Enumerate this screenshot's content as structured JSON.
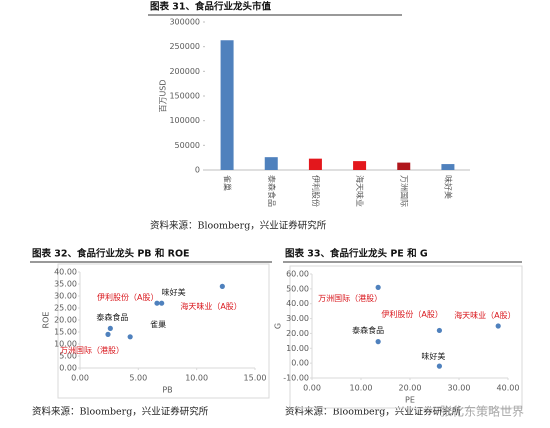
{
  "chart_data": [
    {
      "type": "bar",
      "title": "图表 31、食品行业龙头市值",
      "source": "资料来源：Bloomberg，兴业证券研究所",
      "y_label": "百万USD",
      "categories": [
        "雀巢",
        "泰森食品",
        "伊利股份",
        "海天味业",
        "万洲国际",
        "味好美"
      ],
      "values": [
        263000,
        26000,
        23000,
        18000,
        15000,
        12000
      ],
      "colors": [
        "#4f81bd",
        "#4f81bd",
        "#e3171c",
        "#e3171c",
        "#b0161c",
        "#4f81bd"
      ],
      "ylim": [
        0,
        300000
      ],
      "yticks": [
        0,
        50000,
        100000,
        150000,
        200000,
        250000,
        300000
      ]
    },
    {
      "type": "scatter",
      "title": "图表 32、食品行业龙头 PB 和 ROE",
      "source": "资料来源：Bloomberg，兴业证券研究所",
      "x_label": "PB",
      "y_label": "ROE",
      "color": "#4f81bd",
      "labels": [
        "雀巢",
        "泰森食品",
        "万洲国际（港股）",
        "伊利股份（A股）",
        "味好美",
        "海天味业（A股）"
      ],
      "label_colors": [
        "#222222",
        "#222222",
        "#d9151b",
        "#d9151b",
        "#222222",
        "#d9151b"
      ],
      "x": [
        4.3,
        2.6,
        2.4,
        6.6,
        7.0,
        12.2
      ],
      "y": [
        13,
        16.5,
        14,
        27,
        27,
        34
      ],
      "xlim": [
        0,
        15
      ],
      "xticks": [
        {
          "value": 0,
          "label": "0.00"
        },
        {
          "value": 5,
          "label": "5.00"
        },
        {
          "value": 10,
          "label": "10.00"
        },
        {
          "value": 15,
          "label": "15.00"
        }
      ],
      "ylim": [
        0,
        40
      ],
      "yticks": [
        {
          "value": 0,
          "label": "0.00"
        },
        {
          "value": 5,
          "label": "5.00"
        },
        {
          "value": 10,
          "label": "10.00"
        },
        {
          "value": 15,
          "label": "15.00"
        },
        {
          "value": 20,
          "label": "20.00"
        },
        {
          "value": 25,
          "label": "25.00"
        },
        {
          "value": 30,
          "label": "30.00"
        },
        {
          "value": 35,
          "label": "35.00"
        },
        {
          "value": 40,
          "label": "40.00"
        }
      ]
    },
    {
      "type": "scatter",
      "title": "图表 33、食品行业龙头 PE 和 G",
      "source": "资料来源：Bloomberg，兴业证券研究所",
      "x_label": "PE",
      "y_label": "G",
      "color": "#4f81bd",
      "labels": [
        "万洲国际（港股）",
        "伊利股份（A股）",
        "泰森食品",
        "味好美",
        "海天味业（A股）"
      ],
      "label_colors": [
        "#d9151b",
        "#d9151b",
        "#222222",
        "#222222",
        "#d9151b"
      ],
      "x": [
        13.5,
        26,
        13.5,
        26,
        38
      ],
      "y": [
        51,
        22,
        14.5,
        -2,
        25
      ],
      "xlim": [
        0,
        40
      ],
      "xticks": [
        {
          "value": 0,
          "label": "0.00"
        },
        {
          "value": 10,
          "label": "10.00"
        },
        {
          "value": 20,
          "label": "20.00"
        },
        {
          "value": 30,
          "label": "30.00"
        },
        {
          "value": 40,
          "label": "40.00"
        }
      ],
      "ylim": [
        -10,
        60
      ],
      "yticks": [
        {
          "value": -10,
          "label": "-10.00"
        },
        {
          "value": 0,
          "label": "0.00"
        },
        {
          "value": 10,
          "label": "10.00"
        },
        {
          "value": 20,
          "label": "20.00"
        },
        {
          "value": 30,
          "label": "30.00"
        },
        {
          "value": 40,
          "label": "40.00"
        },
        {
          "value": 50,
          "label": "50.00"
        },
        {
          "value": 60,
          "label": "60.00"
        }
      ]
    }
  ],
  "watermark": "张化东策略世界"
}
